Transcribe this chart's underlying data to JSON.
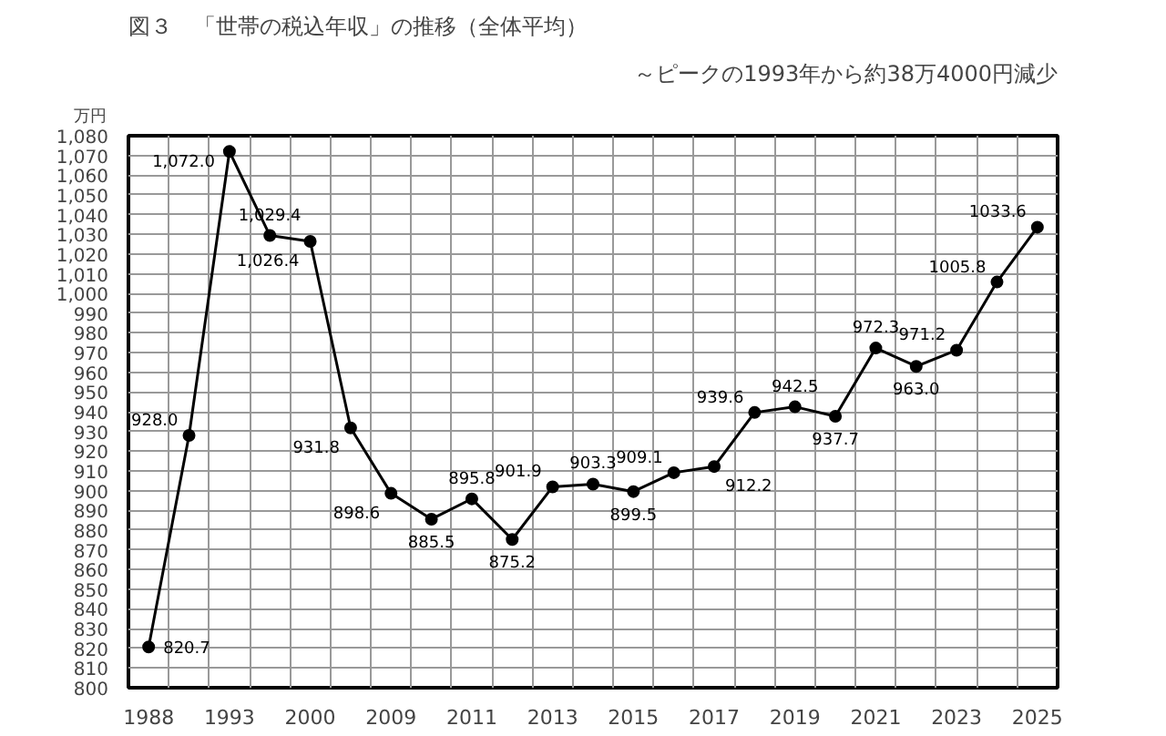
{
  "chart_data": {
    "type": "line",
    "title": "図３　「世帯の税込年収」の推移（全体平均）",
    "subtitle": "～ピークの1993年から約38万4000円減少",
    "ylabel": "万円",
    "categories": [
      "1988",
      null,
      "1993",
      null,
      "2000",
      null,
      "2009",
      null,
      "2011",
      null,
      "2013",
      null,
      "2015",
      null,
      "2017",
      null,
      "2019",
      null,
      "2021",
      null,
      "2023",
      null,
      "2025"
    ],
    "series": [
      {
        "color": "#000000",
        "values": [
          820.7,
          928.0,
          1072.0,
          1029.4,
          1026.4,
          931.8,
          898.6,
          885.5,
          895.8,
          875.2,
          901.9,
          903.3,
          899.5,
          909.1,
          912.2,
          939.6,
          942.5,
          937.7,
          972.3,
          963.0,
          971.2,
          1005.8,
          1033.6
        ],
        "value_labels": [
          "820.7",
          "928.0",
          "1,072.0",
          "1,029.4",
          "1,026.4",
          "931.8",
          "898.6",
          "885.5",
          "895.8",
          "875.2",
          "901.9",
          "903.3",
          "899.5",
          "909.1",
          "912.2",
          "939.6",
          "942.5",
          "937.7",
          "972.3",
          "963.0",
          "971.2",
          "1005.8",
          "1033.6"
        ]
      }
    ],
    "ylim": [
      800,
      1080
    ],
    "yticks": [
      800,
      810,
      820,
      830,
      840,
      850,
      860,
      870,
      880,
      890,
      900,
      910,
      920,
      930,
      940,
      950,
      960,
      970,
      980,
      990,
      {
        "value": 1000,
        "label": "1,000"
      },
      {
        "value": 1010,
        "label": "1,010"
      },
      {
        "value": 1020,
        "label": "1,020"
      },
      {
        "value": 1030,
        "label": "1,030"
      },
      {
        "value": 1040,
        "label": "1,040"
      },
      {
        "value": 1050,
        "label": "1,050"
      },
      {
        "value": 1060,
        "label": "1,060"
      },
      {
        "value": 1070,
        "label": "1,070"
      },
      {
        "value": 1080,
        "label": "1,080"
      }
    ],
    "grid": true,
    "marker": "circle",
    "line_style": "solid"
  }
}
